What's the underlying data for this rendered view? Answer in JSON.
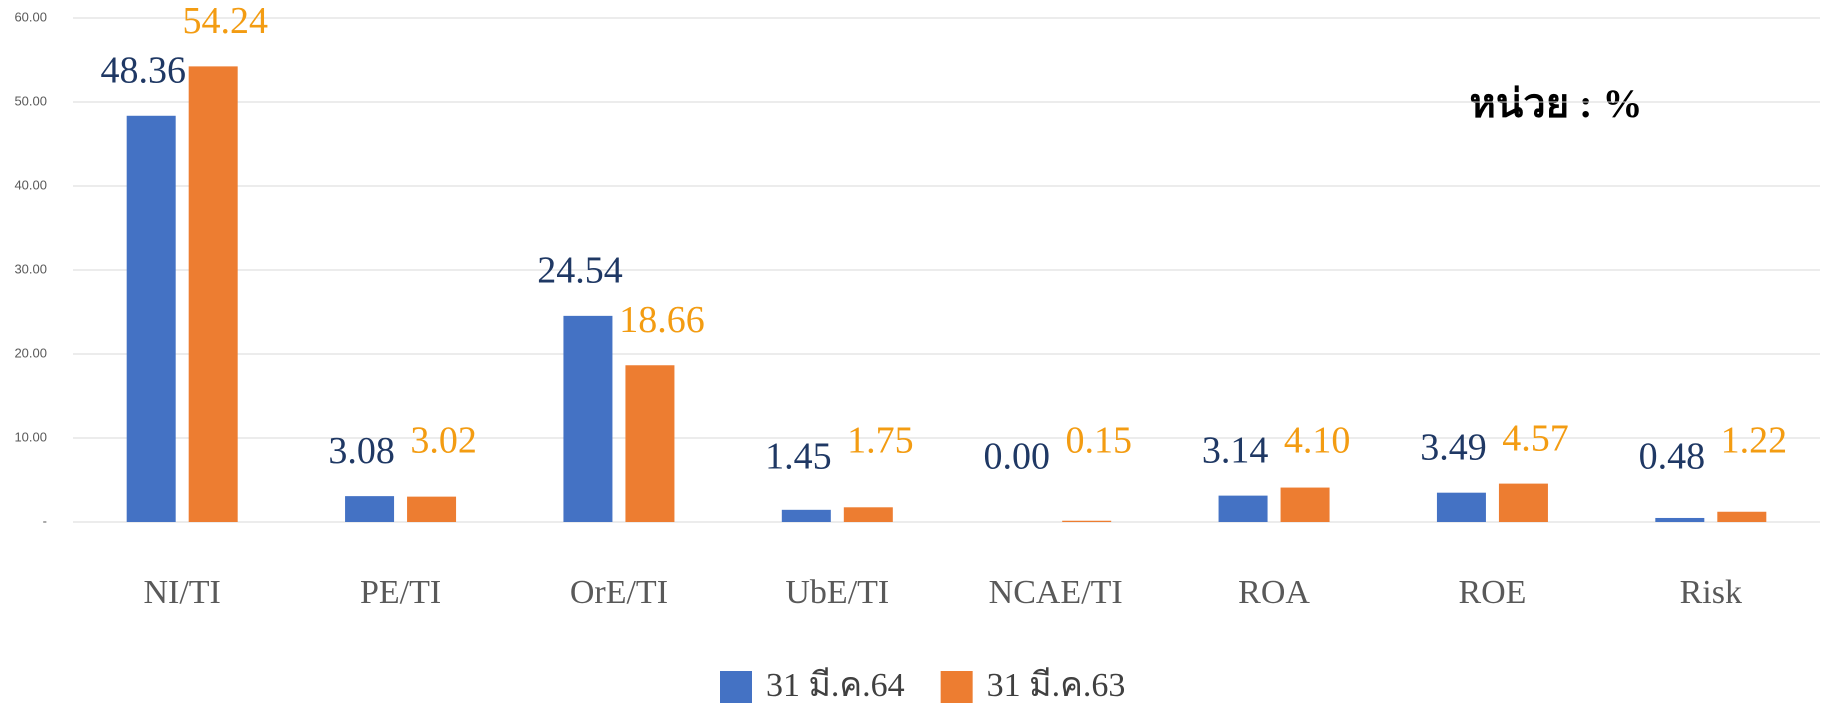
{
  "chart_data": {
    "type": "bar",
    "annotation": "หน่วย : %",
    "categories": [
      "NI/TI",
      "PE/TI",
      "OrE/TI",
      "UbE/TI",
      "NCAE/TI",
      "ROA",
      "ROE",
      "Risk"
    ],
    "series": [
      {
        "name": "31 มี.ค.64",
        "color": "#4472c4",
        "label_color": "#1f3864",
        "values": [
          48.36,
          3.08,
          24.54,
          1.45,
          0.0,
          3.14,
          3.49,
          0.48
        ],
        "value_labels": [
          "48.36",
          "3.08",
          "24.54",
          "1.45",
          "0.00",
          "3.14",
          "3.49",
          "0.48"
        ]
      },
      {
        "name": "31 มี.ค.63",
        "color": "#ed7d31",
        "label_color": "#f39c12",
        "values": [
          54.24,
          3.02,
          18.66,
          1.75,
          0.15,
          4.1,
          4.57,
          1.22
        ],
        "value_labels": [
          "54.24",
          "3.02",
          "18.66",
          "1.75",
          "0.15",
          "4.10",
          "4.57",
          "1.22"
        ]
      }
    ],
    "ylim": [
      0,
      60
    ],
    "yticks": [
      {
        "value": 0,
        "label": "-"
      },
      {
        "value": 10,
        "label": "10.00"
      },
      {
        "value": 20,
        "label": "20.00"
      },
      {
        "value": 30,
        "label": "30.00"
      },
      {
        "value": 40,
        "label": "40.00"
      },
      {
        "value": 50,
        "label": "50.00"
      },
      {
        "value": 60,
        "label": "60.00"
      }
    ],
    "grid": true
  }
}
